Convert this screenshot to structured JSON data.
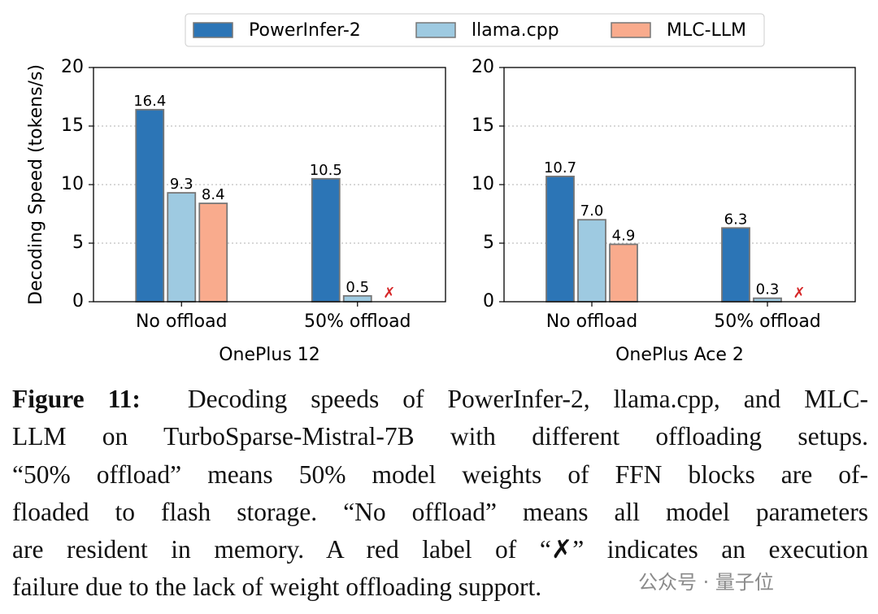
{
  "chart_data": [
    {
      "type": "bar",
      "xlabel": "OnePlus 12",
      "ylabel": "Decoding Speed (tokens/s)",
      "categories": [
        "No offload",
        "50% offload"
      ],
      "series": [
        {
          "name": "PowerInfer-2",
          "color": "#2c75b6",
          "values": [
            16.4,
            10.5
          ],
          "value_labels": [
            "16.4",
            "10.5"
          ]
        },
        {
          "name": "llama.cpp",
          "color": "#9ecae1",
          "values": [
            9.3,
            0.5
          ],
          "value_labels": [
            "9.3",
            "0.5"
          ]
        },
        {
          "name": "MLC-LLM",
          "color": "#f9ab8d",
          "values": [
            8.4,
            null
          ],
          "value_labels": [
            "8.4",
            "✗"
          ]
        }
      ],
      "ylim": [
        0,
        20
      ],
      "yticks": [
        0,
        5,
        10,
        15,
        20
      ],
      "grid": true,
      "failure_color": "#d62728"
    },
    {
      "type": "bar",
      "xlabel": "OnePlus Ace 2",
      "categories": [
        "No offload",
        "50% offload"
      ],
      "series": [
        {
          "name": "PowerInfer-2",
          "color": "#2c75b6",
          "values": [
            10.7,
            6.3
          ],
          "value_labels": [
            "10.7",
            "6.3"
          ]
        },
        {
          "name": "llama.cpp",
          "color": "#9ecae1",
          "values": [
            7.0,
            0.3
          ],
          "value_labels": [
            "7.0",
            "0.3"
          ]
        },
        {
          "name": "MLC-LLM",
          "color": "#f9ab8d",
          "values": [
            4.9,
            null
          ],
          "value_labels": [
            "4.9",
            "✗"
          ]
        }
      ],
      "ylim": [
        0,
        20
      ],
      "yticks": [
        0,
        5,
        10,
        15,
        20
      ],
      "grid": true,
      "failure_color": "#d62728"
    }
  ],
  "caption": {
    "label": "Figure 11:",
    "lines": [
      "Decoding speeds of PowerInfer-2, llama.cpp, and MLC-",
      "LLM on TurboSparse-Mistral-7B with different offloading setups.",
      "“50% offload” means 50% model weights of FFN blocks are of-",
      "floaded to flash storage. “No offload” means all model parameters",
      "are resident in memory. A red label of “✗” indicates an execution",
      "failure due to the lack of weight offloading support."
    ]
  },
  "watermark": "公众号 · 量子位"
}
